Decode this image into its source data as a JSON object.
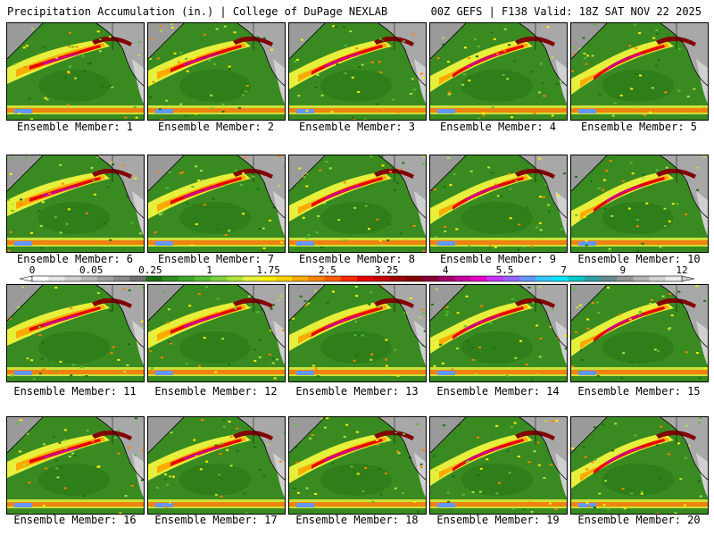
{
  "header": {
    "title_left": "Precipitation Accumulation (in.) | College of DuPage NEXLAB",
    "title_right": "00Z GEFS | F138 Valid: 18Z SAT NOV 22 2025"
  },
  "members": [
    {
      "label": "Ensemble Member: 1"
    },
    {
      "label": "Ensemble Member: 2"
    },
    {
      "label": "Ensemble Member: 3"
    },
    {
      "label": "Ensemble Member: 4"
    },
    {
      "label": "Ensemble Member: 5"
    },
    {
      "label": "Ensemble Member: 6"
    },
    {
      "label": "Ensemble Member: 7"
    },
    {
      "label": "Ensemble Member: 8"
    },
    {
      "label": "Ensemble Member: 9"
    },
    {
      "label": "Ensemble Member: 10"
    },
    {
      "label": "Ensemble Member: 11"
    },
    {
      "label": "Ensemble Member: 12"
    },
    {
      "label": "Ensemble Member: 13"
    },
    {
      "label": "Ensemble Member: 14"
    },
    {
      "label": "Ensemble Member: 15"
    },
    {
      "label": "Ensemble Member: 16"
    },
    {
      "label": "Ensemble Member: 17"
    },
    {
      "label": "Ensemble Member: 18"
    },
    {
      "label": "Ensemble Member: 19"
    },
    {
      "label": "Ensemble Member: 20"
    }
  ],
  "colorbar": {
    "labels": [
      "0",
      "0.05",
      "0.25",
      "1",
      "1.75",
      "2.5",
      "3.25",
      "4",
      "5.5",
      "7",
      "9",
      "12"
    ],
    "colors": [
      "#ffffff",
      "#e8e8e8",
      "#d0d0d0",
      "#b8b8b8",
      "#a0a0a0",
      "#888888",
      "#707070",
      "#1e6e14",
      "#2e8c1e",
      "#3ea628",
      "#56be32",
      "#7ed23c",
      "#b0e23c",
      "#e6f03c",
      "#fff000",
      "#ffd200",
      "#ffaa00",
      "#ff8200",
      "#ff5a00",
      "#ff2800",
      "#e60000",
      "#c80000",
      "#a00000",
      "#820000",
      "#820032",
      "#a00064",
      "#c8009b",
      "#e600c8",
      "#c832ff",
      "#9664ff",
      "#6496ff",
      "#32c8ff",
      "#00e6ff",
      "#00c8c8",
      "#32a0a0",
      "#648c8c",
      "#969696",
      "#b4b4b4",
      "#d2d2d2",
      "#ebebeb"
    ]
  }
}
